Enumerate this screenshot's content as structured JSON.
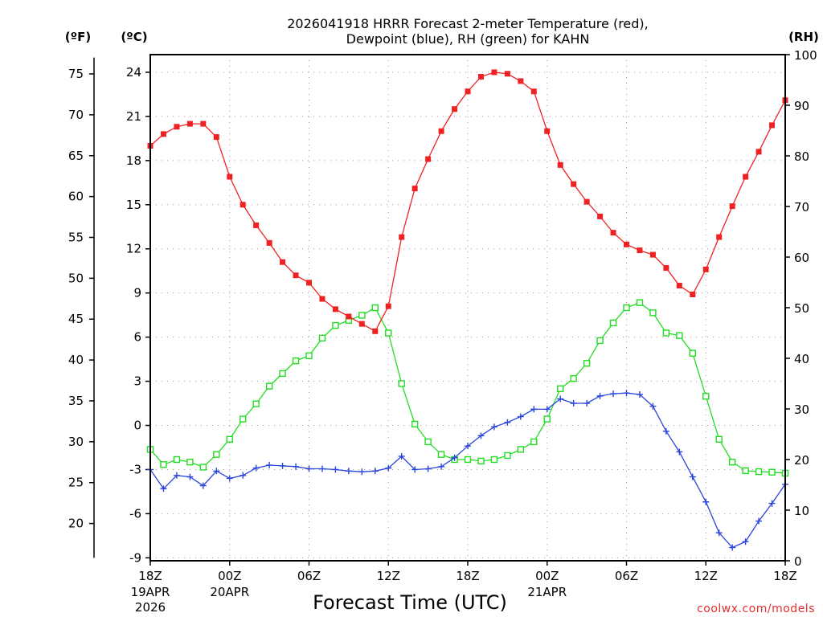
{
  "chart_data": {
    "type": "line",
    "title_line1": "2026041918 HRRR Forecast 2-meter Temperature (red),",
    "title_line2": "Dewpoint (blue), RH (green) for KAHN",
    "xlabel": "Forecast Time (UTC)",
    "credit": "coolwx.com/models",
    "unit_f": "(ºF)",
    "unit_c": "(ºC)",
    "unit_rh": "(RH)",
    "x_hours": [
      0,
      1,
      2,
      3,
      4,
      5,
      6,
      7,
      8,
      9,
      10,
      11,
      12,
      13,
      14,
      15,
      16,
      17,
      18,
      19,
      20,
      21,
      22,
      23,
      24,
      25,
      26,
      27,
      28,
      29,
      30,
      31,
      32,
      33,
      34,
      35,
      36,
      37,
      38,
      39,
      40,
      41,
      42,
      43,
      44,
      45,
      46,
      47,
      48
    ],
    "xlim": [
      0,
      48
    ],
    "x_ticks": [
      {
        "hour": 0,
        "label": "18Z",
        "sub1": "19APR",
        "sub2": "2026"
      },
      {
        "hour": 6,
        "label": "00Z",
        "sub1": "20APR",
        "sub2": ""
      },
      {
        "hour": 12,
        "label": "06Z",
        "sub1": "",
        "sub2": ""
      },
      {
        "hour": 18,
        "label": "12Z",
        "sub1": "",
        "sub2": ""
      },
      {
        "hour": 24,
        "label": "18Z",
        "sub1": "",
        "sub2": ""
      },
      {
        "hour": 30,
        "label": "00Z",
        "sub1": "21APR",
        "sub2": ""
      },
      {
        "hour": 36,
        "label": "06Z",
        "sub1": "",
        "sub2": ""
      },
      {
        "hour": 42,
        "label": "12Z",
        "sub1": "",
        "sub2": ""
      },
      {
        "hour": 48,
        "label": "18Z",
        "sub1": "",
        "sub2": ""
      }
    ],
    "ylim_c": [
      -9.2,
      25.2
    ],
    "c_ticks": [
      24,
      21,
      18,
      15,
      12,
      9,
      6,
      3,
      0,
      -3,
      -6,
      -9
    ],
    "f_ticks": [
      75,
      70,
      65,
      60,
      55,
      50,
      45,
      40,
      35,
      30,
      25,
      20
    ],
    "ylim_rh": [
      0,
      100
    ],
    "rh_ticks": [
      100,
      90,
      80,
      70,
      60,
      50,
      40,
      30,
      20,
      10,
      0
    ],
    "series": [
      {
        "name": "Temperature",
        "axis": "c",
        "color": "#ee2222",
        "marker": "filled-square",
        "values": [
          19.0,
          19.8,
          20.3,
          20.5,
          20.5,
          19.6,
          16.9,
          15.0,
          13.6,
          12.4,
          11.1,
          10.2,
          9.7,
          8.6,
          7.9,
          7.4,
          6.9,
          6.4,
          8.1,
          12.8,
          16.1,
          18.1,
          20.0,
          21.5,
          22.7,
          23.7,
          24.0,
          23.9,
          23.4,
          22.7,
          20.0,
          17.7,
          16.4,
          15.2,
          14.2,
          13.1,
          12.3,
          11.9,
          11.6,
          10.7,
          9.5,
          8.9,
          10.6,
          12.8,
          14.9,
          16.9,
          18.6,
          20.4,
          22.1
        ]
      },
      {
        "name": "Dewpoint",
        "axis": "c",
        "color": "#2a45dd",
        "marker": "plus",
        "values": [
          -3.0,
          -4.3,
          -3.4,
          -3.5,
          -4.1,
          -3.1,
          -3.6,
          -3.4,
          -2.9,
          -2.7,
          -2.75,
          -2.8,
          -2.95,
          -2.95,
          -3.0,
          -3.1,
          -3.15,
          -3.1,
          -2.9,
          -2.1,
          -3.0,
          -2.95,
          -2.8,
          -2.2,
          -1.4,
          -0.7,
          -0.1,
          0.2,
          0.6,
          1.1,
          1.1,
          1.8,
          1.5,
          1.5,
          2.0,
          2.15,
          2.2,
          2.1,
          1.3,
          -0.4,
          -1.8,
          -3.5,
          -5.2,
          -7.3,
          -8.3,
          -7.9,
          -6.5,
          -5.3,
          -4.0
        ]
      },
      {
        "name": "RH",
        "axis": "rh",
        "color": "#22dd22",
        "marker": "open-square",
        "values": [
          22,
          19,
          20,
          19.5,
          18.5,
          21,
          24,
          28,
          31,
          34.5,
          37,
          39.5,
          40.5,
          44,
          46.5,
          47.5,
          48.5,
          50,
          45,
          35,
          27,
          23.5,
          21,
          20,
          20,
          19.7,
          20,
          20.8,
          22,
          23.5,
          28,
          34,
          36,
          39,
          43.5,
          47,
          50,
          51,
          49,
          45,
          44.5,
          41,
          32.5,
          24,
          19.5,
          17.8,
          17.6,
          17.5,
          17.3
        ]
      }
    ]
  }
}
